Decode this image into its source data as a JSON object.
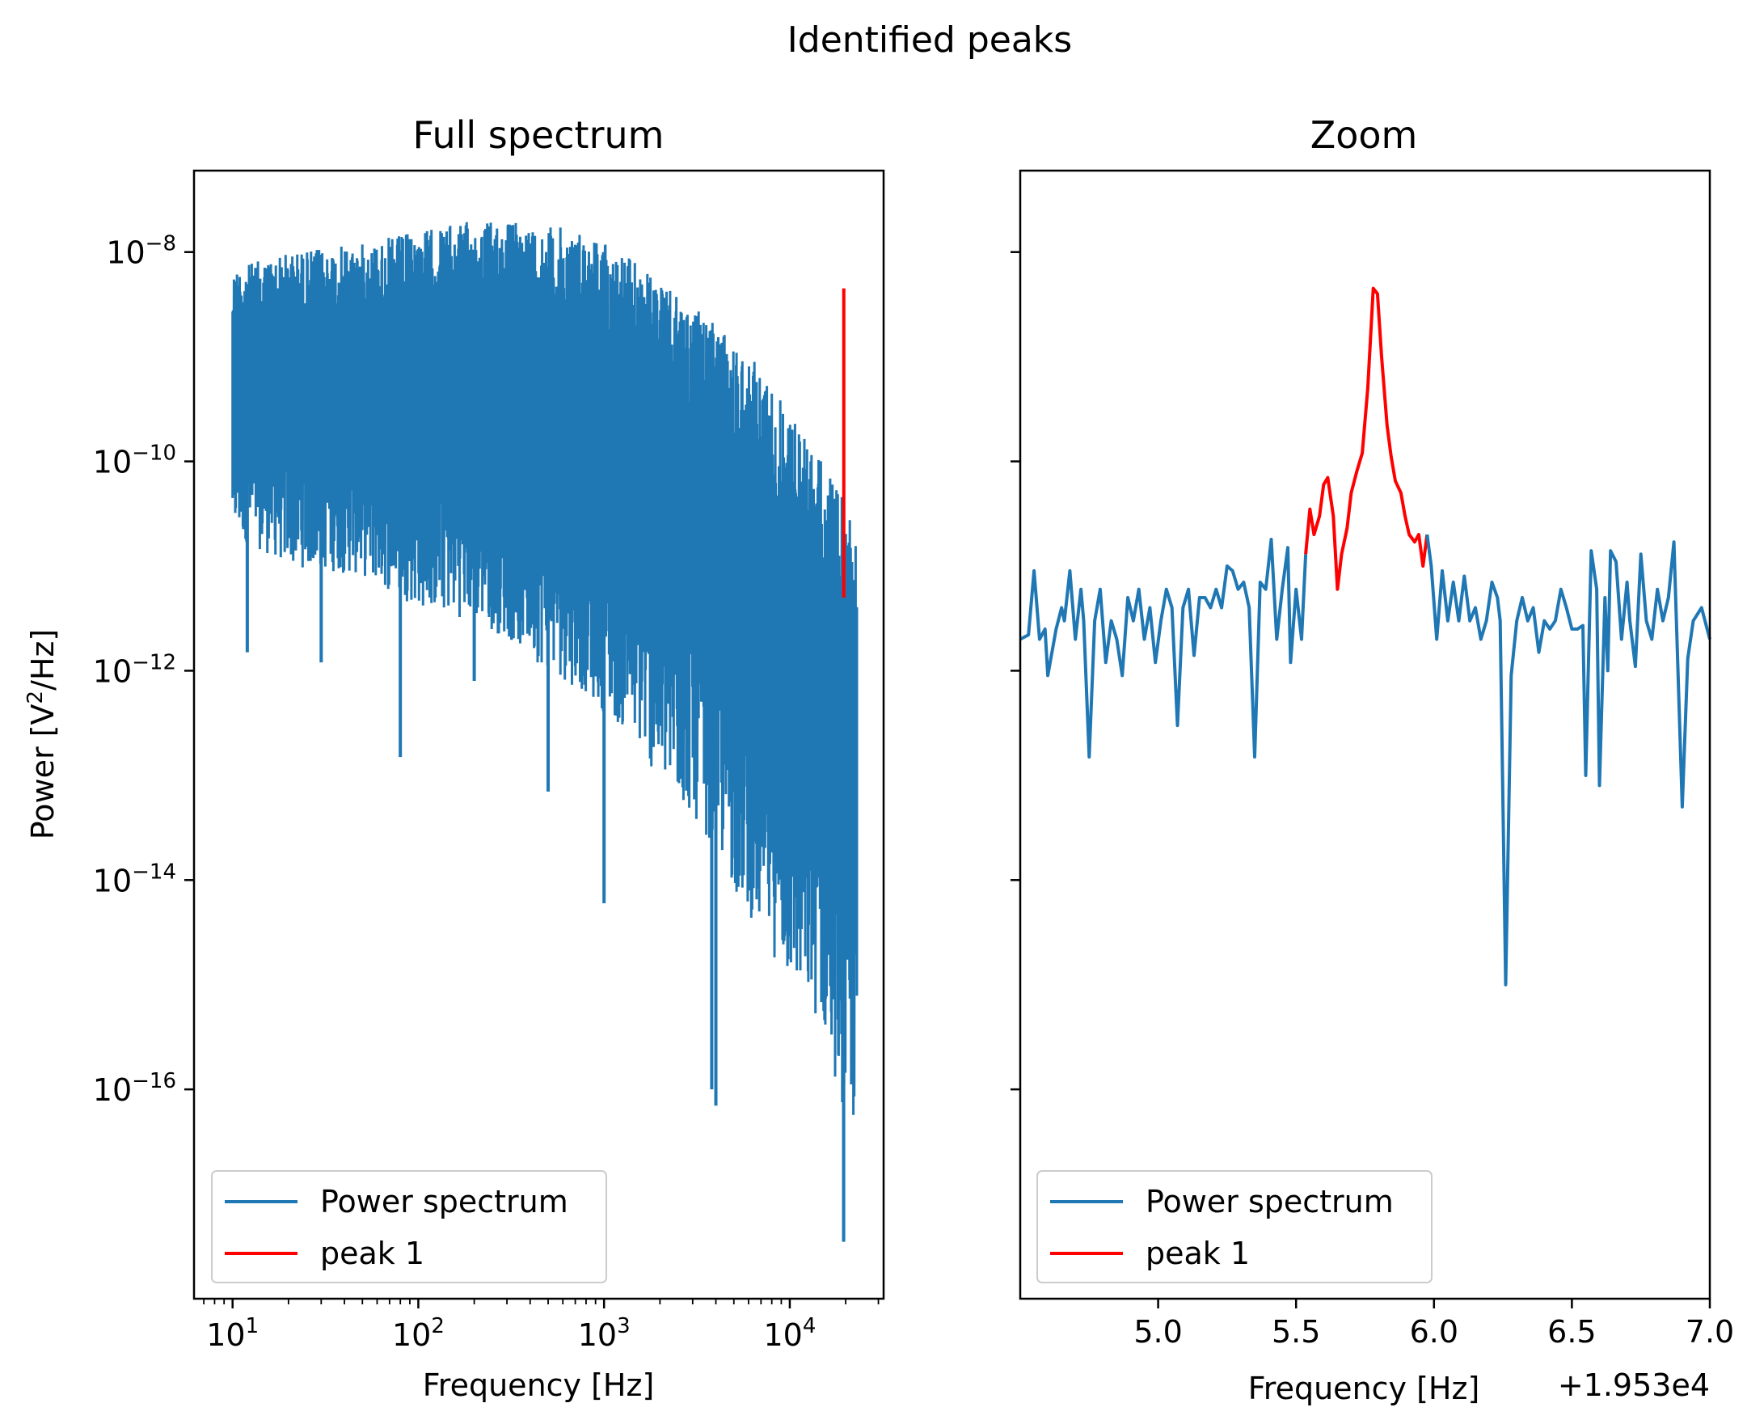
{
  "figure_title": "Identified peaks",
  "chart_data": [
    {
      "type": "line",
      "title": "Full spectrum",
      "xlabel": "Frequency [Hz]",
      "ylabel": "Power [V²/Hz]",
      "xscale": "log",
      "yscale": "log",
      "xlim": [
        6.2,
        32000
      ],
      "ylim": [
        1e-18,
        6e-08
      ],
      "x_ticks": [
        {
          "value": 10,
          "base": "10",
          "exp": "1"
        },
        {
          "value": 100,
          "base": "10",
          "exp": "2"
        },
        {
          "value": 1000,
          "base": "10",
          "exp": "3"
        },
        {
          "value": 10000,
          "base": "10",
          "exp": "4"
        }
      ],
      "y_ticks": [
        {
          "value": 1e-08,
          "base": "10",
          "exp": "−8"
        },
        {
          "value": 1e-10,
          "base": "10",
          "exp": "−10"
        },
        {
          "value": 1e-12,
          "base": "10",
          "exp": "−12"
        },
        {
          "value": 1e-14,
          "base": "10",
          "exp": "−14"
        },
        {
          "value": 1e-16,
          "base": "10",
          "exp": "−16"
        }
      ],
      "series": [
        {
          "name": "Power spectrum",
          "color": "#1f77b4",
          "x": [
            10,
            20,
            50,
            100,
            200,
            300,
            500,
            800,
            1000,
            1500,
            2000,
            3000,
            4000,
            5000,
            7000,
            10000,
            15000,
            20000,
            23000
          ],
          "y_upper": [
            7e-09,
            1e-08,
            1.2e-08,
            1.6e-08,
            2e-08,
            2e-08,
            1.8e-08,
            1.6e-08,
            1.3e-08,
            8e-09,
            5e-09,
            3e-09,
            2e-09,
            1.4e-09,
            8e-10,
            3e-10,
            1e-10,
            4e-11,
            3e-11
          ],
          "y_lower": [
            2e-11,
            1e-11,
            8e-12,
            4e-12,
            3e-12,
            2e-12,
            1e-12,
            6e-13,
            4e-13,
            2e-13,
            8e-14,
            4e-14,
            2e-14,
            8e-15,
            3e-15,
            1e-15,
            4e-16,
            5e-17,
            4e-17
          ],
          "dips": [
            [
              12,
              1.5e-12
            ],
            [
              30,
              1.2e-12
            ],
            [
              80,
              1.5e-13
            ],
            [
              200,
              8e-13
            ],
            [
              500,
              7e-14
            ],
            [
              1000,
              6e-15
            ],
            [
              3800,
              1e-16
            ],
            [
              4000,
              7e-17
            ],
            [
              19500,
              3.5e-18
            ]
          ]
        },
        {
          "name": "peak 1",
          "color": "#ff0000",
          "x": [
            19535.78,
            19535.78
          ],
          "y": [
            5e-12,
            4.5e-09
          ]
        }
      ],
      "legend": {
        "placement": "lower-left",
        "entries": [
          "Power spectrum",
          "peak 1"
        ]
      }
    },
    {
      "type": "line",
      "title": "Zoom",
      "xlabel": "Frequency [Hz]",
      "x_offset_label": "+1.953e4",
      "xlim": [
        4.5,
        7.0
      ],
      "ylim": [
        1e-18,
        6e-08
      ],
      "yscale": "log",
      "sharey": true,
      "x_ticks": [
        "5.0",
        "5.5",
        "6.0",
        "6.5",
        "7.0"
      ],
      "series": [
        {
          "name": "Power spectrum",
          "color": "#1f77b4",
          "points": [
            [
              4.5,
              2e-12
            ],
            [
              4.53,
              2.2e-12
            ],
            [
              4.55,
              9e-12
            ],
            [
              4.57,
              2e-12
            ],
            [
              4.59,
              2.5e-12
            ],
            [
              4.6,
              9e-13
            ],
            [
              4.63,
              2.5e-12
            ],
            [
              4.65,
              4e-12
            ],
            [
              4.66,
              3e-12
            ],
            [
              4.68,
              9e-12
            ],
            [
              4.7,
              2e-12
            ],
            [
              4.72,
              6e-12
            ],
            [
              4.73,
              3e-12
            ],
            [
              4.75,
              1.5e-13
            ],
            [
              4.77,
              3e-12
            ],
            [
              4.79,
              6e-12
            ],
            [
              4.81,
              1.2e-12
            ],
            [
              4.83,
              3e-12
            ],
            [
              4.85,
              2e-12
            ],
            [
              4.87,
              9e-13
            ],
            [
              4.89,
              5e-12
            ],
            [
              4.91,
              3e-12
            ],
            [
              4.93,
              6e-12
            ],
            [
              4.95,
              2e-12
            ],
            [
              4.97,
              4e-12
            ],
            [
              4.99,
              1.2e-12
            ],
            [
              5.01,
              3e-12
            ],
            [
              5.03,
              6e-12
            ],
            [
              5.05,
              4e-12
            ],
            [
              5.07,
              3e-13
            ],
            [
              5.09,
              4e-12
            ],
            [
              5.11,
              6e-12
            ],
            [
              5.13,
              1.4e-12
            ],
            [
              5.15,
              5e-12
            ],
            [
              5.17,
              5e-12
            ],
            [
              5.19,
              4e-12
            ],
            [
              5.21,
              6e-12
            ],
            [
              5.23,
              4e-12
            ],
            [
              5.25,
              1e-11
            ],
            [
              5.27,
              9e-12
            ],
            [
              5.29,
              6e-12
            ],
            [
              5.31,
              7e-12
            ],
            [
              5.33,
              4e-12
            ],
            [
              5.35,
              1.5e-13
            ],
            [
              5.37,
              7e-12
            ],
            [
              5.39,
              6e-12
            ],
            [
              5.41,
              1.8e-11
            ],
            [
              5.43,
              2e-12
            ],
            [
              5.45,
              6e-12
            ],
            [
              5.47,
              1.5e-11
            ],
            [
              5.48,
              1.2e-12
            ],
            [
              5.5,
              6e-12
            ],
            [
              5.52,
              2e-12
            ],
            [
              5.535,
              1.3e-11
            ]
          ]
        },
        {
          "name": "peak 1",
          "color": "#ff0000",
          "points": [
            [
              5.535,
              1.3e-11
            ],
            [
              5.55,
              3.5e-11
            ],
            [
              5.565,
              2e-11
            ],
            [
              5.585,
              3e-11
            ],
            [
              5.6,
              6e-11
            ],
            [
              5.615,
              7e-11
            ],
            [
              5.635,
              3e-11
            ],
            [
              5.65,
              6e-12
            ],
            [
              5.665,
              1.3e-11
            ],
            [
              5.685,
              2.3e-11
            ],
            [
              5.7,
              5e-11
            ],
            [
              5.72,
              8e-11
            ],
            [
              5.74,
              1.2e-10
            ],
            [
              5.76,
              5e-10
            ],
            [
              5.78,
              4.5e-09
            ],
            [
              5.795,
              4e-09
            ],
            [
              5.81,
              1e-09
            ],
            [
              5.83,
              2.2e-10
            ],
            [
              5.845,
              1.1e-10
            ],
            [
              5.86,
              6.5e-11
            ],
            [
              5.88,
              5e-11
            ],
            [
              5.895,
              3e-11
            ],
            [
              5.91,
              2e-11
            ],
            [
              5.93,
              1.7e-11
            ],
            [
              5.945,
              2e-11
            ],
            [
              5.96,
              1e-11
            ],
            [
              5.975,
              2e-11
            ]
          ]
        },
        {
          "name": "Power spectrum",
          "color": "#1f77b4",
          "points": [
            [
              5.975,
              2e-11
            ],
            [
              5.99,
              1e-11
            ],
            [
              6.01,
              2e-12
            ],
            [
              6.03,
              9e-12
            ],
            [
              6.05,
              3e-12
            ],
            [
              6.07,
              7e-12
            ],
            [
              6.09,
              3e-12
            ],
            [
              6.11,
              8e-12
            ],
            [
              6.13,
              3e-12
            ],
            [
              6.15,
              4e-12
            ],
            [
              6.17,
              2e-12
            ],
            [
              6.19,
              3e-12
            ],
            [
              6.21,
              7e-12
            ],
            [
              6.23,
              5e-12
            ],
            [
              6.24,
              3e-12
            ],
            [
              6.26,
              1e-15
            ],
            [
              6.28,
              9e-13
            ],
            [
              6.3,
              3e-12
            ],
            [
              6.32,
              5e-12
            ],
            [
              6.34,
              3e-12
            ],
            [
              6.36,
              4e-12
            ],
            [
              6.38,
              1.5e-12
            ],
            [
              6.4,
              3e-12
            ],
            [
              6.42,
              2.5e-12
            ],
            [
              6.44,
              3e-12
            ],
            [
              6.46,
              6e-12
            ],
            [
              6.48,
              4e-12
            ],
            [
              6.5,
              2.5e-12
            ],
            [
              6.52,
              2.5e-12
            ],
            [
              6.54,
              2.7e-12
            ],
            [
              6.55,
              1e-13
            ],
            [
              6.57,
              1.4e-11
            ],
            [
              6.59,
              6e-12
            ],
            [
              6.6,
              8e-14
            ],
            [
              6.62,
              5e-12
            ],
            [
              6.63,
              1e-12
            ],
            [
              6.64,
              1.4e-11
            ],
            [
              6.66,
              1.1e-11
            ],
            [
              6.68,
              2e-12
            ],
            [
              6.7,
              7e-12
            ],
            [
              6.71,
              3e-12
            ],
            [
              6.73,
              1.1e-12
            ],
            [
              6.75,
              1.3e-11
            ],
            [
              6.77,
              3e-12
            ],
            [
              6.79,
              2e-12
            ],
            [
              6.81,
              6e-12
            ],
            [
              6.83,
              3e-12
            ],
            [
              6.85,
              5e-12
            ],
            [
              6.87,
              1.7e-11
            ],
            [
              6.9,
              5e-14
            ],
            [
              6.92,
              1.3e-12
            ],
            [
              6.94,
              3e-12
            ],
            [
              6.97,
              4e-12
            ],
            [
              7.0,
              2e-12
            ]
          ]
        }
      ],
      "legend": {
        "placement": "lower-left",
        "entries": [
          "Power spectrum",
          "peak 1"
        ]
      }
    }
  ]
}
